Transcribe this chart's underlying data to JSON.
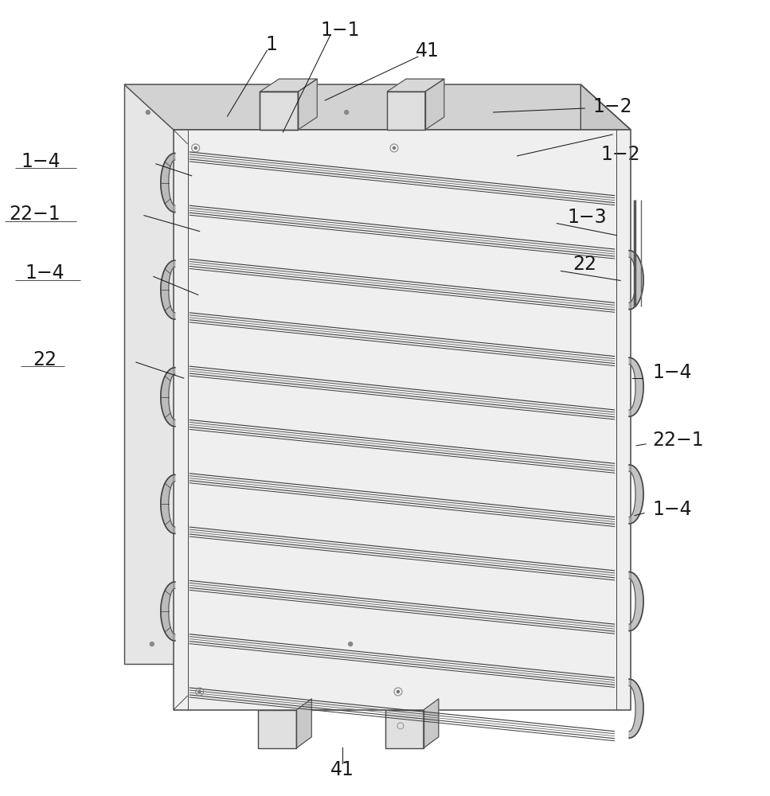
{
  "bg_color": "#ffffff",
  "lc": "#4a4a4a",
  "lw": 1.0,
  "figsize": [
    9.67,
    10.0
  ],
  "dpi": 100,
  "panel_fill_front": "#e8e8e8",
  "panel_fill_top": "#d8d8d8",
  "panel_fill_right": "#cccccc",
  "panel_fill_left_side": "#d0d0d0",
  "tube_color": "#555555",
  "annot_color": "#1a1a1a",
  "annot_fs": 15
}
